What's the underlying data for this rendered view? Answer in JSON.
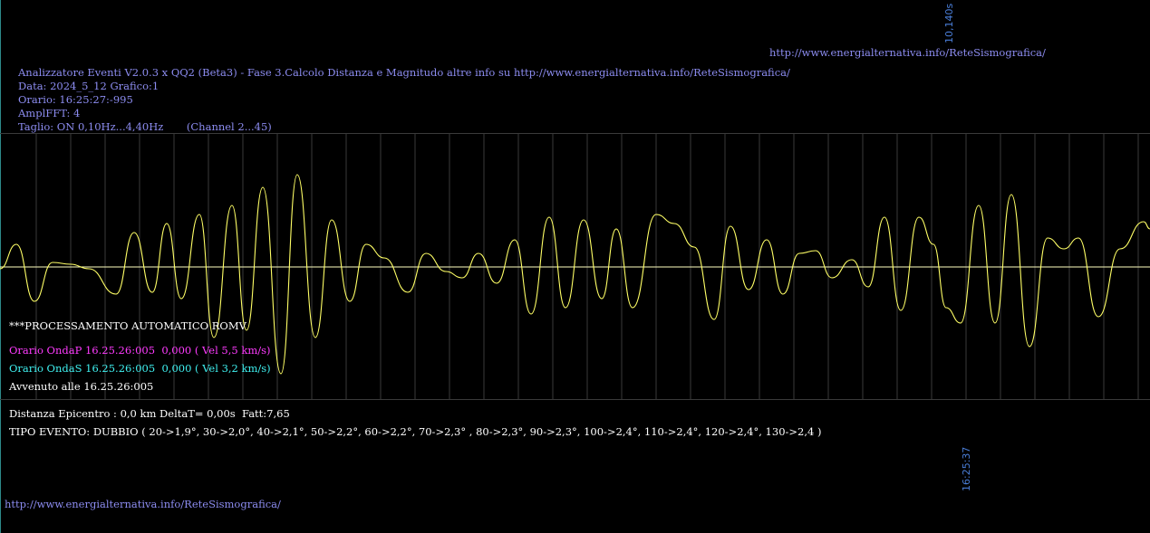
{
  "header": {
    "title": "Analizzatore Eventi V2.0.3 x QQ2 (Beta3) - Fase 3.Calcolo Distanza e Magnitudo altre info su http://www.energialternativa.info/ReteSismografica/",
    "date": "Data: 2024_5_12 Grafico:1",
    "time": "Orario: 16:25:27:-995",
    "ampl": "AmplFFT: 4",
    "cut": "Taglio: ON 0,10Hz...4,40Hz       (Channel 2...45)"
  },
  "top_url": "http://www.energialternativa.info/ReteSismografica/",
  "bottom_url": "http://www.energialternativa.info/ReteSismografica/",
  "time_span_label": "10,140s",
  "end_time_label": "16:25:37",
  "processing": {
    "mode": "***PROCESSAMENTO AUTOMATICO ROMV",
    "p_wave": "Orario OndaP 16.25.26:005  0,000 ( Vel 5,5 km/s)",
    "s_wave": "Orario OndaS 16.25.26:005  0,000 ( Vel 3,2 km/s)",
    "occurred": "Avvenuto alle 16.25.26:005"
  },
  "result": {
    "distance": "Distanza Epicentro : 0,0 km DeltaT= 0,00s  Fatt:7,65",
    "event_type": "TIPO EVENTO: DUBBIO ( 20->1,9°, 30->2,0°, 40->2,1°, 50->2,2°, 60->2,2°, 70->2,3° , 80->2,3°, 90->2,3°, 100->2,4°, 110->2,4°, 120->2,4°, 130->2,4 )"
  },
  "colors": {
    "background": "#000000",
    "waveform": "#ffff66",
    "baseline": "#ffffc0",
    "grid": "#3a3a3a",
    "info_text": "#8c8cf0",
    "p_wave": "#ff3bff",
    "s_wave": "#3ff0f0"
  }
}
